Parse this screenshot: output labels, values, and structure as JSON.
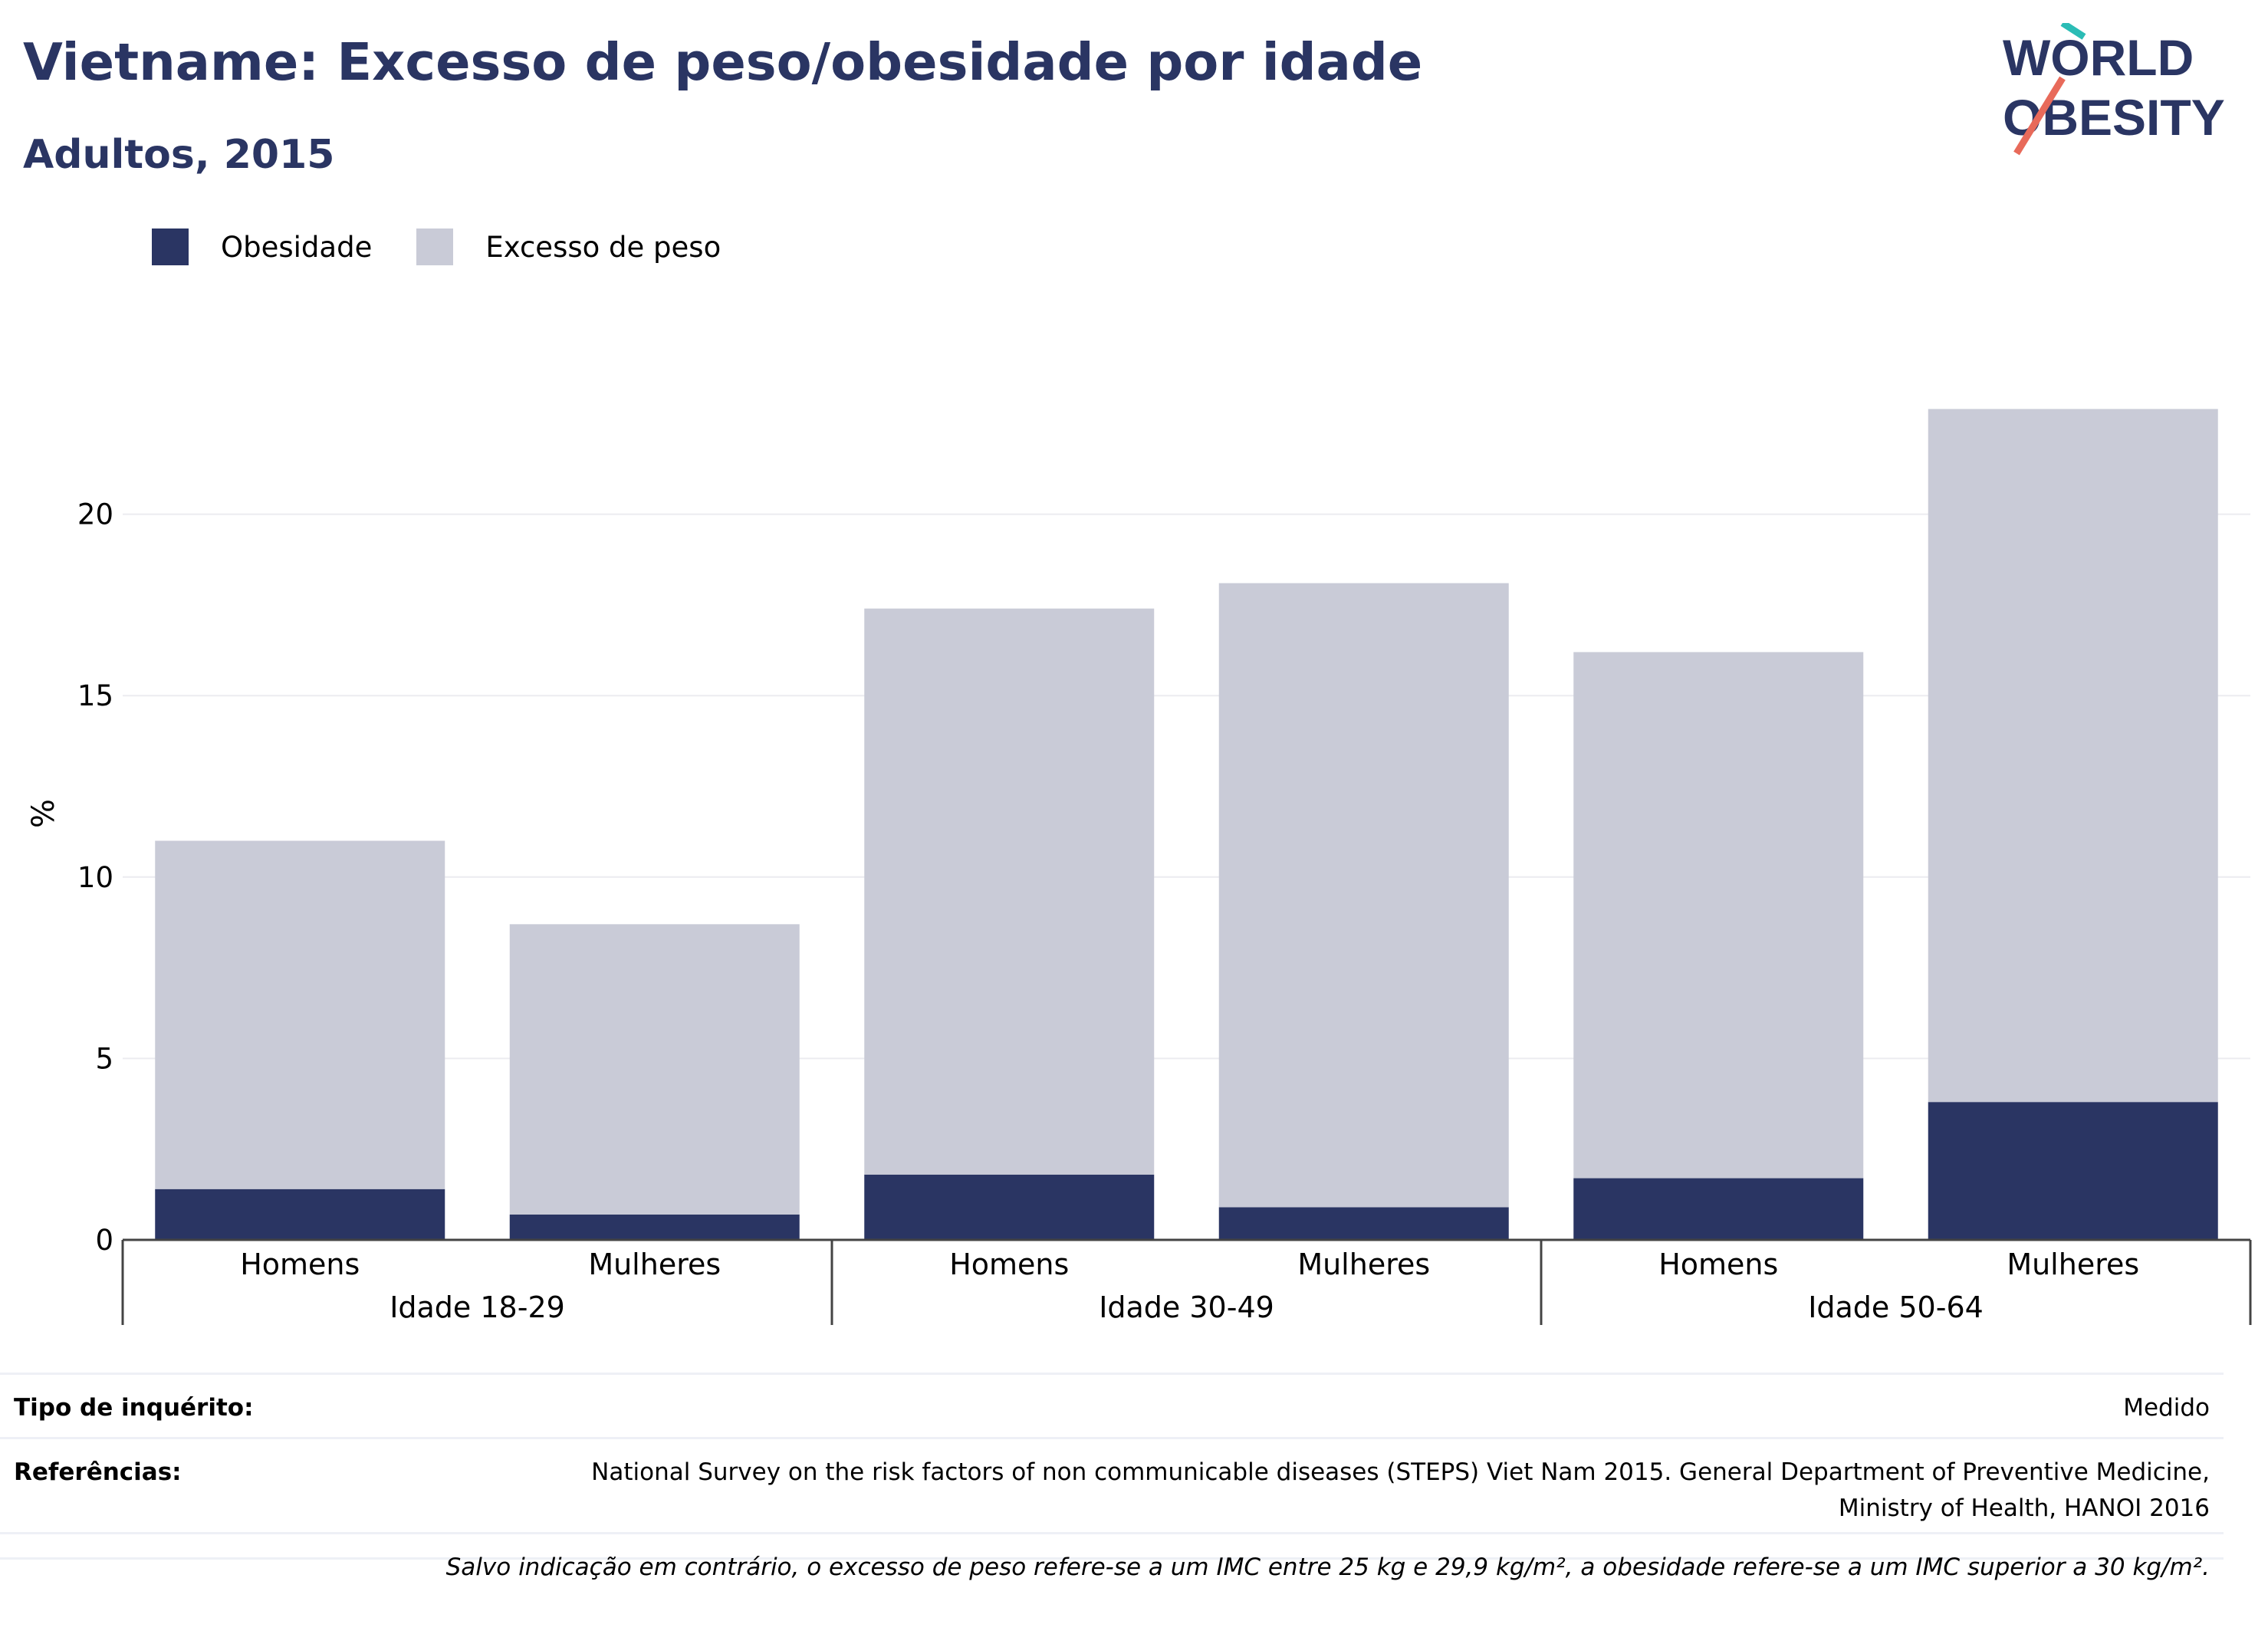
{
  "header": {
    "title": "Vietname: Excesso de peso/obesidade por idade",
    "subtitle": "Adultos, 2015"
  },
  "logo": {
    "line1": "WORLD",
    "line2": "OBESITY"
  },
  "legend": [
    {
      "label": "Obesidade",
      "color": "#2a3563"
    },
    {
      "label": "Excesso de peso",
      "color": "#c9cbd7"
    }
  ],
  "chart_data": {
    "type": "bar",
    "stacked": true,
    "ylabel": "%",
    "ylim": [
      0,
      23.5
    ],
    "yticks": [
      0,
      5,
      10,
      15,
      20
    ],
    "grid": true,
    "legend_position": "top-left",
    "categories": [
      "Homens",
      "Mulheres",
      "Homens",
      "Mulheres",
      "Homens",
      "Mulheres"
    ],
    "groups": [
      {
        "label": "Idade 18-29",
        "members": [
          0,
          1
        ]
      },
      {
        "label": "Idade 30-49",
        "members": [
          2,
          3
        ]
      },
      {
        "label": "Idade 50-64",
        "members": [
          4,
          5
        ]
      }
    ],
    "series": [
      {
        "name": "Obesidade",
        "color": "#2a3563",
        "values": [
          1.4,
          0.7,
          1.8,
          0.9,
          1.7,
          3.8
        ]
      },
      {
        "name": "Excesso de peso",
        "color": "#c9cbd7",
        "values": [
          9.6,
          8.0,
          15.6,
          17.2,
          14.5,
          19.1
        ]
      }
    ]
  },
  "info": {
    "survey_label": "Tipo de inquérito:",
    "survey_value": "Medido",
    "refs_label": "Referências:",
    "refs_line1": "National Survey on the risk factors of non communicable diseases (STEPS) Viet Nam 2015. General Department of Preventive Medicine,",
    "refs_line2": "Ministry of Health, HANOI 2016",
    "footnote": "Salvo indicação em contrário, o excesso de peso refere-se a um IMC entre 25 kg e 29,9 kg/m², a obesidade refere-se a um IMC superior a 30 kg/m²."
  }
}
